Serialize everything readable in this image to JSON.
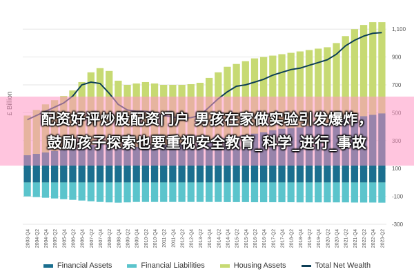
{
  "chart_data": {
    "type": "bar",
    "ylabel": "£ Billion",
    "ylim": [
      -300,
      1200
    ],
    "yticks": [
      -300,
      -100,
      100,
      300,
      500,
      700,
      900,
      1100
    ],
    "yticklabels": [
      "-300",
      "-100",
      "100",
      "300",
      "500",
      "700",
      "900",
      "1,100"
    ],
    "grid": true,
    "legend_position": "bottom",
    "x": [
      "2003-Q4",
      "2004-Q2",
      "2004-Q4",
      "2005-Q2",
      "2005-Q4",
      "2006-Q2",
      "2006-Q4",
      "2007-Q2",
      "2007-Q4",
      "2008-Q2",
      "2008-Q4",
      "2009-Q2",
      "2009-Q4",
      "2010-Q2",
      "2010-Q4",
      "2011-Q2",
      "2011-Q4",
      "2012-Q2",
      "2012-Q4",
      "2013-Q2",
      "2013-Q4",
      "2014-Q2",
      "2014-Q4",
      "2015-Q2",
      "2015-Q4",
      "2016-Q2",
      "2016-Q4",
      "2017-Q2",
      "2017-Q4",
      "2018-Q2",
      "2018-Q4",
      "2019-Q2",
      "2019-Q4",
      "2020-Q2",
      "2020-Q4",
      "2021-Q2",
      "2021-Q4",
      "2022-Q2",
      "2022-Q4",
      "2023-Q2"
    ],
    "series": [
      {
        "name": "Financial Assets",
        "color": "#1b6f8f",
        "values": [
          195,
          205,
          215,
          225,
          235,
          245,
          260,
          270,
          280,
          270,
          250,
          250,
          255,
          260,
          265,
          270,
          275,
          280,
          285,
          290,
          300,
          310,
          320,
          330,
          340,
          350,
          360,
          375,
          385,
          390,
          395,
          405,
          415,
          425,
          440,
          455,
          465,
          475,
          485,
          495
        ]
      },
      {
        "name": "Financial Liabilities",
        "color": "#5bc4cc",
        "values": [
          -100,
          -105,
          -110,
          -115,
          -120,
          -125,
          -130,
          -135,
          -140,
          -143,
          -145,
          -143,
          -140,
          -140,
          -140,
          -140,
          -140,
          -140,
          -140,
          -140,
          -140,
          -140,
          -141,
          -141,
          -141,
          -142,
          -142,
          -142,
          -142,
          -142,
          -143,
          -143,
          -143,
          -143,
          -143,
          -143,
          -144,
          -144,
          -144,
          -145
        ]
      },
      {
        "name": "Housing Assets",
        "color": "#c7da73",
        "values": [
          480,
          520,
          560,
          590,
          620,
          660,
          720,
          790,
          820,
          800,
          730,
          700,
          710,
          720,
          710,
          700,
          700,
          700,
          705,
          715,
          750,
          790,
          830,
          850,
          870,
          890,
          900,
          910,
          920,
          930,
          940,
          950,
          960,
          970,
          1000,
          1050,
          1100,
          1130,
          1150,
          1150
        ]
      },
      {
        "name": "Total Net Wealth",
        "color": "#0c3e56",
        "type": "line",
        "values": [
          450,
          480,
          510,
          540,
          570,
          620,
          700,
          720,
          710,
          640,
          560,
          520,
          510,
          510,
          500,
          480,
          470,
          460,
          465,
          480,
          540,
          600,
          650,
          690,
          700,
          720,
          740,
          770,
          790,
          810,
          820,
          840,
          860,
          880,
          920,
          980,
          1020,
          1050,
          1070,
          1075
        ]
      }
    ]
  },
  "banner": {
    "line1": "配资好评炒股配资门户 男孩在家做实验引发爆炸，",
    "line2": "鼓励孩子探索也要重视安全教育_科学_进行_事故"
  }
}
